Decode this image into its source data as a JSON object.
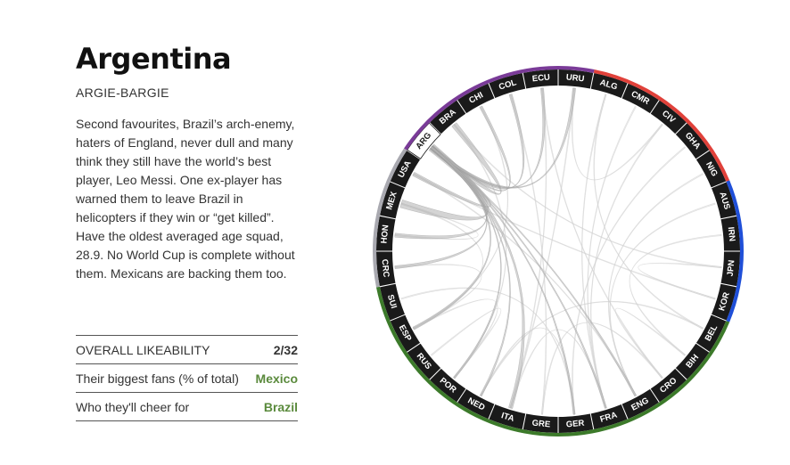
{
  "team": {
    "name": "Argentina",
    "nickname": "ARGIE-BARGIE",
    "description": "Second favourites, Brazil’s arch-enemy, haters of England, never dull and many think they still have the world’s best player, Leo Messi. One ex-player has warned them to leave Brazil in helicopters if they win or “get killed”. Have the oldest averaged age squad, 28.9. No World Cup is complete without them. Mexicans are backing them too."
  },
  "stats": [
    {
      "label": "OVERALL LIKEABILITY",
      "value": "2/32",
      "highlight": false
    },
    {
      "label": "Their biggest fans (% of total)",
      "value": "Mexico",
      "highlight": true
    },
    {
      "label": "Who they'll cheer for",
      "value": "Brazil",
      "highlight": true
    }
  ],
  "chart_data": {
    "type": "chord",
    "teams": [
      "URU",
      "ALG",
      "CMR",
      "CIV",
      "GHA",
      "NIG",
      "AUS",
      "IRN",
      "JPN",
      "KOR",
      "BEL",
      "BIH",
      "CRO",
      "ENG",
      "FRA",
      "GER",
      "GRE",
      "ITA",
      "NED",
      "POR",
      "RUS",
      "ESP",
      "SUI",
      "CRC",
      "HON",
      "MEX",
      "USA",
      "ARG",
      "BRA",
      "CHI",
      "COL",
      "ECU"
    ],
    "selected": "ARG",
    "confederations": [
      {
        "teams": [
          "ALG",
          "CMR",
          "CIV",
          "GHA",
          "NIG"
        ],
        "color": "#e0413a"
      },
      {
        "teams": [
          "AUS",
          "IRN",
          "JPN",
          "KOR"
        ],
        "color": "#1f4fd8"
      },
      {
        "teams": [
          "BEL",
          "BIH",
          "CRO",
          "ENG",
          "FRA",
          "GER",
          "GRE",
          "ITA",
          "NED",
          "POR",
          "RUS",
          "ESP",
          "SUI"
        ],
        "color": "#3c7a2a"
      },
      {
        "teams": [
          "CRC",
          "HON",
          "MEX",
          "USA"
        ],
        "color": "#a9a9b0"
      },
      {
        "teams": [
          "ARG",
          "BRA",
          "CHI",
          "COL",
          "ECU",
          "URU"
        ],
        "color": "#7a3b98"
      }
    ],
    "selected_links": [
      {
        "target": "MEX",
        "weight": 4
      },
      {
        "target": "BRA",
        "weight": 3
      },
      {
        "target": "USA",
        "weight": 2
      },
      {
        "target": "HON",
        "weight": 2
      },
      {
        "target": "CRC",
        "weight": 1.5
      },
      {
        "target": "ITA",
        "weight": 2
      },
      {
        "target": "ESP",
        "weight": 1.5
      },
      {
        "target": "CHI",
        "weight": 1.5
      },
      {
        "target": "COL",
        "weight": 1.5
      },
      {
        "target": "ECU",
        "weight": 1.5
      },
      {
        "target": "URU",
        "weight": 1.5
      },
      {
        "target": "GER",
        "weight": 1
      },
      {
        "target": "POR",
        "weight": 1
      },
      {
        "target": "NED",
        "weight": 1
      },
      {
        "target": "ENG",
        "weight": 1
      },
      {
        "target": "FRA",
        "weight": 1
      }
    ],
    "background_links": [
      [
        "COL",
        "GRE"
      ],
      [
        "CHI",
        "ESP"
      ],
      [
        "ECU",
        "ITA"
      ],
      [
        "URU",
        "ITA"
      ],
      [
        "BRA",
        "POR"
      ],
      [
        "ALG",
        "FRA"
      ],
      [
        "CMR",
        "FRA"
      ],
      [
        "CIV",
        "FRA"
      ],
      [
        "GHA",
        "GER"
      ],
      [
        "NIG",
        "ENG"
      ],
      [
        "AUS",
        "ENG"
      ],
      [
        "JPN",
        "KOR"
      ],
      [
        "IRN",
        "BIH"
      ],
      [
        "BEL",
        "NED"
      ],
      [
        "CRO",
        "BIH"
      ],
      [
        "MEX",
        "ESP"
      ],
      [
        "USA",
        "ENG"
      ],
      [
        "HON",
        "MEX"
      ],
      [
        "CRC",
        "ESP"
      ],
      [
        "SUI",
        "GER"
      ],
      [
        "RUS",
        "POR"
      ],
      [
        "ESP",
        "POR"
      ],
      [
        "KOR",
        "USA"
      ],
      [
        "NED",
        "GER"
      ],
      [
        "ITA",
        "FRA"
      ],
      [
        "BRA",
        "JPN"
      ],
      [
        "ECU",
        "CRO"
      ],
      [
        "GRE",
        "CRO"
      ],
      [
        "URU",
        "CIV"
      ],
      [
        "ALG",
        "BEL"
      ]
    ]
  }
}
